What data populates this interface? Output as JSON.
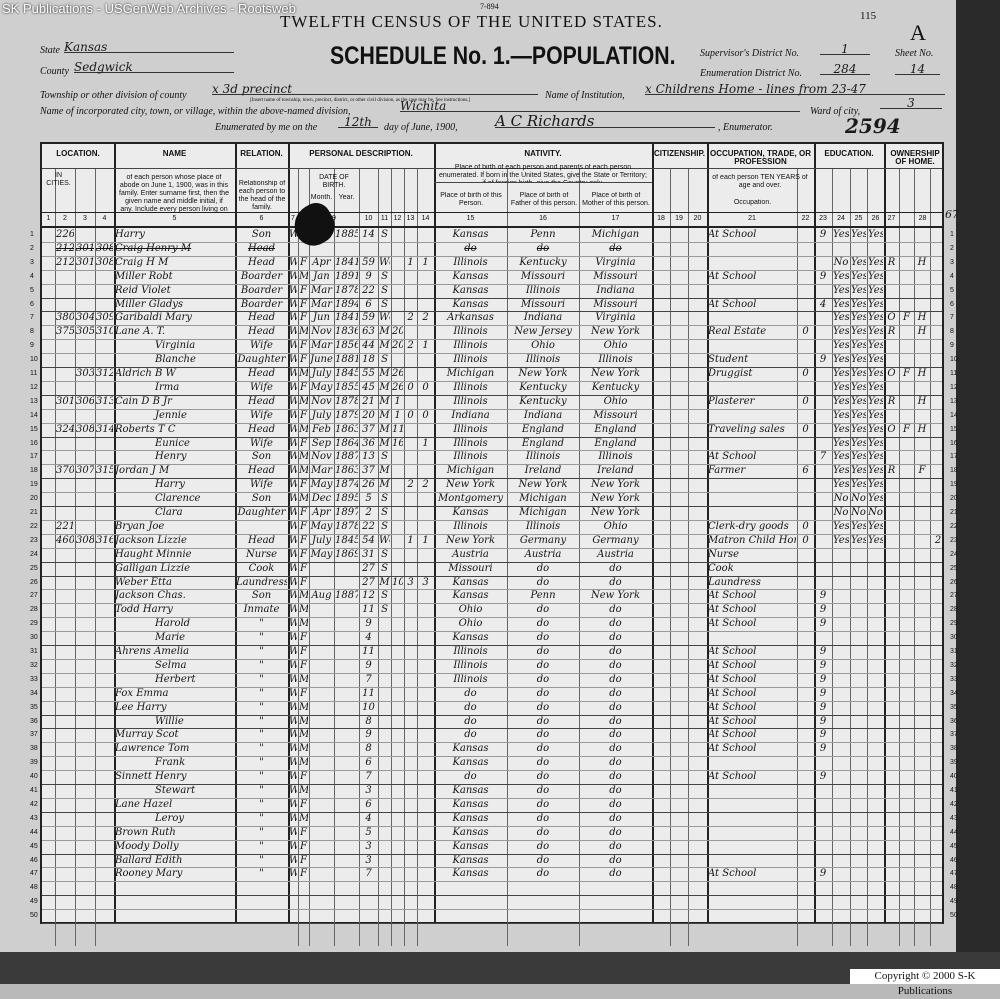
{
  "watermark": "SK Publications - USGenWeb Archives - Rootsweb",
  "form_no": "7-894",
  "page_no": "115",
  "sheet_letter": "A",
  "title": "TWELFTH CENSUS OF THE UNITED STATES.",
  "schedule": "SCHEDULE No. 1.—POPULATION.",
  "fields": {
    "state_label": "State",
    "state": "Kansas",
    "county_label": "County",
    "county": "Sedgwick",
    "township_label": "Township or other division of county",
    "township": "x 3d precinct",
    "township_note": "[Insert name of township, town, precinct, district, or other civil division, as the case may be. See instructions.]",
    "institution_label": "Name of Institution,",
    "institution": "x Childrens Home - lines from 23-47",
    "city_label": "Name of incorporated city, town, or village, within the above-named division,",
    "city": "Wichita",
    "ward_label": "Ward of city,",
    "ward": "3",
    "enum_label_1": "Enumerated by me on the",
    "enum_day": "12th",
    "enum_label_2": "day of June, 1900,",
    "enumerator": "A C Richards",
    "enum_label_3": ", Enumerator.",
    "supervisor_label": "Supervisor's District No.",
    "supervisor": "1",
    "ed_label": "Enumeration District No.",
    "ed": "284",
    "sheet_label": "Sheet No.",
    "sheet": "14",
    "stamp": "2594",
    "margin_note": "67"
  },
  "header": {
    "groups": [
      "LOCATION.",
      "NAME",
      "RELATION.",
      "PERSONAL DESCRIPTION.",
      "NATIVITY.",
      "CITIZENSHIP.",
      "OCCUPATION, TRADE, OR PROFESSION",
      "EDUCATION.",
      "OWNERSHIP OF HOME."
    ],
    "name_desc": "of each person whose place of abode on June 1, 1900, was in this family. Enter surname first, then the given name and middle initial, if any. Include every person living on June 1, 1900. Omit children born since June 1, 1900.",
    "relation_desc": "Relationship of each person to the head of the family.",
    "in_cities": "IN CITIES.",
    "date_of_birth": "DATE OF BIRTH.",
    "month": "Month.",
    "year": "Year.",
    "nativity_desc": "Place of birth of each person and parents of each person enumerated. If born in the United States, give the State or Territory; if of foreign birth, give the Country only.",
    "birth_person": "Place of birth of this Person.",
    "birth_father": "Place of birth of Father of this person.",
    "birth_mother": "Place of birth of Mother of this person.",
    "occ_desc": "of each person TEN YEARS of age and over.",
    "occupation": "Occupation.",
    "colnums": [
      "1",
      "2",
      "3",
      "4",
      "5",
      "6",
      "7",
      "8",
      "9",
      "10",
      "11",
      "12",
      "13",
      "14",
      "15",
      "16",
      "17",
      "18",
      "19",
      "20",
      "21",
      "22",
      "23",
      "24",
      "25",
      "26",
      "27",
      "28"
    ]
  },
  "rows": [
    {
      "house": "226",
      "name": "Harry",
      "relation": "Son",
      "color": "W",
      "sex": "M",
      "month": "May",
      "year": "1885",
      "age": "14",
      "marital": "S",
      "birth": "Kansas",
      "father": "Penn",
      "mother_b": "Michigan",
      "occupation": "At School",
      "school": "9",
      "read": "Yes",
      "write": "Yes",
      "english": "Yes"
    },
    {
      "house": "212",
      "dwelling": "301",
      "family": "308",
      "name": "Craig Henry M",
      "relation": "Head",
      "birth": "do",
      "father": "do",
      "mother_b": "do"
    },
    {
      "house": "212",
      "dwelling": "301",
      "family": "308",
      "name": "Craig H M",
      "relation": "Head",
      "color": "W",
      "sex": "F",
      "month": "Apr",
      "year": "1841",
      "age": "59",
      "marital": "Wd",
      "mother_of": "1",
      "living": "1",
      "birth": "Illinois",
      "father": "Kentucky",
      "mother_b": "Virginia",
      "read": "No",
      "write": "Yes",
      "english": "Yes",
      "own": "R",
      "farm": "H"
    },
    {
      "name": "Miller Robt",
      "relation": "Boarder",
      "color": "W",
      "sex": "M",
      "month": "Jan",
      "year": "1891",
      "age": "9",
      "marital": "S",
      "birth": "Kansas",
      "father": "Missouri",
      "mother_b": "Missouri",
      "occupation": "At School",
      "school": "9",
      "read": "Yes",
      "write": "Yes",
      "english": "Yes"
    },
    {
      "name": "Reid Violet",
      "relation": "Boarder",
      "color": "W",
      "sex": "F",
      "month": "Mar",
      "year": "1878",
      "age": "22",
      "marital": "S",
      "birth": "Kansas",
      "father": "Illinois",
      "mother_b": "Indiana",
      "read": "Yes",
      "write": "Yes",
      "english": "Yes"
    },
    {
      "name": "Miller Gladys",
      "relation": "Boarder",
      "color": "W",
      "sex": "F",
      "month": "Mar",
      "year": "1894",
      "age": "6",
      "marital": "S",
      "birth": "Kansas",
      "father": "Missouri",
      "mother_b": "Missouri",
      "occupation": "At School",
      "school": "4",
      "read": "Yes",
      "write": "Yes",
      "english": "Yes"
    },
    {
      "house": "380",
      "dwelling": "304",
      "family": "309",
      "name": "Garibaldi Mary",
      "relation": "Head",
      "color": "W",
      "sex": "F",
      "month": "Jun",
      "year": "1841",
      "age": "59",
      "marital": "Wd",
      "mother_of": "2",
      "living": "2",
      "birth": "Arkansas",
      "father": "Indiana",
      "mother_b": "Virginia",
      "read": "Yes",
      "write": "Yes",
      "english": "Yes",
      "own": "O",
      "free": "F",
      "farm": "H"
    },
    {
      "house": "375",
      "dwelling": "305",
      "family": "310",
      "name": "Lane A. T.",
      "relation": "Head",
      "color": "W",
      "sex": "M",
      "month": "Nov",
      "year": "1836",
      "age": "63",
      "marital": "M",
      "yrs": "20",
      "birth": "Illinois",
      "father": "New Jersey",
      "mother_b": "New York",
      "occupation": "Real Estate",
      "unemp": "0",
      "read": "Yes",
      "write": "Yes",
      "english": "Yes",
      "own": "R",
      "farm": "H"
    },
    {
      "name": "Virginia",
      "relation": "Wife",
      "color": "W",
      "sex": "F",
      "month": "Mar",
      "year": "1856",
      "age": "44",
      "marital": "M",
      "yrs": "20",
      "mother_of": "2",
      "living": "1",
      "birth": "Illinois",
      "father": "Ohio",
      "mother_b": "Ohio",
      "read": "Yes",
      "write": "Yes",
      "english": "Yes"
    },
    {
      "name": "Blanche",
      "relation": "Daughter",
      "color": "W",
      "sex": "F",
      "month": "June",
      "year": "1881",
      "age": "18",
      "marital": "S",
      "birth": "Illinois",
      "father": "Illinois",
      "mother_b": "Illinois",
      "occupation": "Student",
      "school": "9",
      "read": "Yes",
      "write": "Yes",
      "english": "Yes"
    },
    {
      "dwelling": "303",
      "family": "312",
      "name": "Aldrich B W",
      "relation": "Head",
      "color": "W",
      "sex": "M",
      "month": "July",
      "year": "1845",
      "age": "55",
      "marital": "M",
      "yrs": "26",
      "birth": "Michigan",
      "father": "New York",
      "mother_b": "New York",
      "occupation": "Druggist",
      "unemp": "0",
      "read": "Yes",
      "write": "Yes",
      "english": "Yes",
      "own": "O",
      "free": "F",
      "farm": "H"
    },
    {
      "name": "Irma",
      "relation": "Wife",
      "color": "W",
      "sex": "F",
      "month": "May",
      "year": "1855",
      "age": "45",
      "marital": "M",
      "yrs": "26",
      "mother_of": "0",
      "living": "0",
      "birth": "Illinois",
      "father": "Kentucky",
      "mother_b": "Kentucky",
      "read": "Yes",
      "write": "Yes",
      "english": "Yes"
    },
    {
      "house": "301",
      "dwelling": "306",
      "family": "313",
      "name": "Cain D B Jr",
      "relation": "Head",
      "color": "W",
      "sex": "M",
      "month": "Nov",
      "year": "1878",
      "age": "21",
      "marital": "M",
      "yrs": "1",
      "birth": "Illinois",
      "father": "Kentucky",
      "mother_b": "Ohio",
      "occupation": "Plasterer",
      "unemp": "0",
      "read": "Yes",
      "write": "Yes",
      "english": "Yes",
      "own": "R",
      "farm": "H"
    },
    {
      "name": "Jennie",
      "relation": "Wife",
      "color": "W",
      "sex": "F",
      "month": "July",
      "year": "1879",
      "age": "20",
      "marital": "M",
      "yrs": "1",
      "mother_of": "0",
      "living": "0",
      "birth": "Indiana",
      "father": "Indiana",
      "mother_b": "Missouri",
      "read": "Yes",
      "write": "Yes",
      "english": "Yes"
    },
    {
      "house": "324",
      "dwelling": "308",
      "family": "314",
      "name": "Roberts T C",
      "relation": "Head",
      "color": "W",
      "sex": "M",
      "month": "Feb",
      "year": "1863",
      "age": "37",
      "marital": "M",
      "yrs": "11",
      "birth": "Illinois",
      "father": "England",
      "mother_b": "England",
      "occupation": "Traveling sales",
      "unemp": "0",
      "read": "Yes",
      "write": "Yes",
      "english": "Yes",
      "own": "O",
      "free": "F",
      "farm": "H"
    },
    {
      "name": "Eunice",
      "relation": "Wife",
      "color": "W",
      "sex": "F",
      "month": "Sep",
      "year": "1864",
      "age": "36",
      "marital": "M",
      "yrs": "16",
      "living": "1",
      "birth": "Illinois",
      "father": "England",
      "mother_b": "England",
      "read": "Yes",
      "write": "Yes",
      "english": "Yes"
    },
    {
      "name": "Henry",
      "relation": "Son",
      "color": "W",
      "sex": "M",
      "month": "Nov",
      "year": "1887",
      "age": "13",
      "marital": "S",
      "birth": "Illinois",
      "father": "Illinois",
      "mother_b": "Illinois",
      "occupation": "At School",
      "school": "7",
      "read": "Yes",
      "write": "Yes",
      "english": "Yes"
    },
    {
      "house": "370",
      "dwelling": "307",
      "family": "315",
      "name": "Jordan J M",
      "relation": "Head",
      "color": "W",
      "sex": "M",
      "month": "Mar",
      "year": "1863",
      "age": "37",
      "marital": "M",
      "birth": "Michigan",
      "father": "Ireland",
      "mother_b": "Ireland",
      "occupation": "Farmer",
      "unemp": "6",
      "read": "Yes",
      "write": "Yes",
      "english": "Yes",
      "own": "R",
      "farm": "F"
    },
    {
      "name": "Harry",
      "relation": "Wife",
      "color": "W",
      "sex": "F",
      "month": "May",
      "year": "1874",
      "age": "26",
      "marital": "M",
      "mother_of": "2",
      "living": "2",
      "birth": "New York",
      "father": "New York",
      "mother_b": "New York",
      "read": "Yes",
      "write": "Yes",
      "english": "Yes"
    },
    {
      "name": "Clarence",
      "relation": "Son",
      "color": "W",
      "sex": "M",
      "month": "Dec",
      "year": "1895",
      "age": "5",
      "marital": "S",
      "birth": "Montgomery",
      "father": "Michigan",
      "mother_b": "New York",
      "read": "No",
      "write": "No",
      "english": "Yes"
    },
    {
      "name": "Clara",
      "relation": "Daughter",
      "color": "W",
      "sex": "F",
      "month": "Apr",
      "year": "1897",
      "age": "2",
      "marital": "S",
      "birth": "Kansas",
      "father": "Michigan",
      "mother_b": "New York",
      "read": "No",
      "write": "No",
      "english": "No"
    },
    {
      "house": "221",
      "name": "Bryan Joe",
      "color": "W",
      "sex": "F",
      "month": "May",
      "year": "1878",
      "age": "22",
      "marital": "S",
      "birth": "Illinois",
      "father": "Illinois",
      "mother_b": "Ohio",
      "occupation": "Clerk-dry goods",
      "unemp": "0",
      "read": "Yes",
      "write": "Yes",
      "english": "Yes"
    },
    {
      "house": "460",
      "dwelling": "308",
      "family": "316",
      "name": "Jackson Lizzie",
      "relation": "Head",
      "color": "W",
      "sex": "F",
      "month": "July",
      "year": "1845",
      "age": "54",
      "marital": "Wd",
      "mother_of": "1",
      "living": "1",
      "birth": "New York",
      "father": "Germany",
      "mother_b": "Germany",
      "occupation": "Matron Child Home",
      "unemp": "0",
      "read": "Yes",
      "write": "Yes",
      "english": "Yes",
      "sched": "2"
    },
    {
      "name": "Haught Minnie",
      "relation": "Nurse",
      "color": "W",
      "sex": "F",
      "month": "May",
      "year": "1869",
      "age": "31",
      "marital": "S",
      "birth": "Austria",
      "father": "Austria",
      "mother_b": "Austria",
      "occupation": "Nurse"
    },
    {
      "name": "Galligan Lizzie",
      "relation": "Cook",
      "color": "W",
      "sex": "F",
      "age": "27",
      "marital": "S",
      "birth": "Missouri",
      "father": "do",
      "mother_b": "do",
      "occupation": "Cook"
    },
    {
      "name": "Weber Etta",
      "relation": "Laundress",
      "color": "W",
      "sex": "F",
      "age": "27",
      "marital": "M",
      "yrs": "10",
      "mother_of": "3",
      "living": "3",
      "birth": "Kansas",
      "father": "do",
      "mother_b": "do",
      "occupation": "Laundress"
    },
    {
      "name": "Jackson Chas.",
      "relation": "Son",
      "color": "W",
      "sex": "M",
      "month": "Aug",
      "year": "1887",
      "age": "12",
      "marital": "S",
      "birth": "Kansas",
      "father": "Penn",
      "mother_b": "New York",
      "occupation": "At School",
      "school": "9"
    },
    {
      "name": "Todd Harry",
      "relation": "Inmate",
      "color": "W",
      "sex": "M",
      "age": "11",
      "marital": "S",
      "birth": "Ohio",
      "father": "do",
      "mother_b": "do",
      "occupation": "At School",
      "school": "9"
    },
    {
      "name": "Harold",
      "relation": "\"",
      "color": "W",
      "sex": "M",
      "age": "9",
      "birth": "Ohio",
      "father": "do",
      "mother_b": "do",
      "occupation": "At School",
      "school": "9"
    },
    {
      "name": "Marie",
      "relation": "\"",
      "color": "W",
      "sex": "F",
      "age": "4",
      "birth": "Kansas",
      "father": "do",
      "mother_b": "do"
    },
    {
      "name": "Ahrens Amelia",
      "relation": "\"",
      "color": "W",
      "sex": "F",
      "age": "11",
      "birth": "Illinois",
      "father": "do",
      "mother_b": "do",
      "occupation": "At School",
      "school": "9"
    },
    {
      "name": "Selma",
      "relation": "\"",
      "color": "W",
      "sex": "F",
      "age": "9",
      "birth": "Illinois",
      "father": "do",
      "mother_b": "do",
      "occupation": "At School",
      "school": "9"
    },
    {
      "name": "Herbert",
      "relation": "\"",
      "color": "W",
      "sex": "M",
      "age": "7",
      "birth": "Illinois",
      "father": "do",
      "mother_b": "do",
      "occupation": "At School",
      "school": "9"
    },
    {
      "name": "Fox Emma",
      "relation": "\"",
      "color": "W",
      "sex": "F",
      "age": "11",
      "birth": "do",
      "father": "do",
      "mother_b": "do",
      "occupation": "At School",
      "school": "9"
    },
    {
      "name": "Lee Harry",
      "relation": "\"",
      "color": "W",
      "sex": "M",
      "age": "10",
      "birth": "do",
      "father": "do",
      "mother_b": "do",
      "occupation": "At School",
      "school": "9"
    },
    {
      "name": "Willie",
      "relation": "\"",
      "color": "W",
      "sex": "M",
      "age": "8",
      "birth": "do",
      "father": "do",
      "mother_b": "do",
      "occupation": "At School",
      "school": "9"
    },
    {
      "name": "Murray Scot",
      "relation": "\"",
      "color": "W",
      "sex": "M",
      "age": "9",
      "birth": "do",
      "father": "do",
      "mother_b": "do",
      "occupation": "At School",
      "school": "9"
    },
    {
      "name": "Lawrence Tom",
      "relation": "\"",
      "color": "W",
      "sex": "M",
      "age": "8",
      "birth": "Kansas",
      "father": "do",
      "mother_b": "do",
      "occupation": "At School",
      "school": "9"
    },
    {
      "name": "Frank",
      "relation": "\"",
      "color": "W",
      "sex": "M",
      "age": "6",
      "birth": "Kansas",
      "father": "do",
      "mother_b": "do"
    },
    {
      "name": "Sinnett Henry",
      "relation": "\"",
      "color": "W",
      "sex": "F",
      "age": "7",
      "birth": "do",
      "father": "do",
      "mother_b": "do",
      "occupation": "At School",
      "school": "9"
    },
    {
      "name": "Stewart",
      "relation": "\"",
      "color": "W",
      "sex": "M",
      "age": "3",
      "birth": "Kansas",
      "father": "do",
      "mother_b": "do"
    },
    {
      "name": "Lane Hazel",
      "relation": "\"",
      "color": "W",
      "sex": "F",
      "age": "6",
      "birth": "Kansas",
      "father": "do",
      "mother_b": "do"
    },
    {
      "name": "Leroy",
      "relation": "\"",
      "color": "W",
      "sex": "M",
      "age": "4",
      "birth": "Kansas",
      "father": "do",
      "mother_b": "do"
    },
    {
      "name": "Brown Ruth",
      "relation": "\"",
      "color": "W",
      "sex": "F",
      "age": "5",
      "birth": "Kansas",
      "father": "do",
      "mother_b": "do"
    },
    {
      "name": "Moody Dolly",
      "relation": "\"",
      "color": "W",
      "sex": "F",
      "age": "3",
      "birth": "Kansas",
      "father": "do",
      "mother_b": "do"
    },
    {
      "name": "Ballard Edith",
      "relation": "\"",
      "color": "W",
      "sex": "F",
      "age": "3",
      "birth": "Kansas",
      "father": "do",
      "mother_b": "do"
    },
    {
      "name": "Rooney Mary",
      "relation": "\"",
      "color": "W",
      "sex": "F",
      "age": "7",
      "birth": "Kansas",
      "father": "do",
      "mother_b": "do",
      "occupation": "At School",
      "school": "9"
    },
    {},
    {},
    {}
  ],
  "copyright": "Copyright © 2000 S-K Publications"
}
